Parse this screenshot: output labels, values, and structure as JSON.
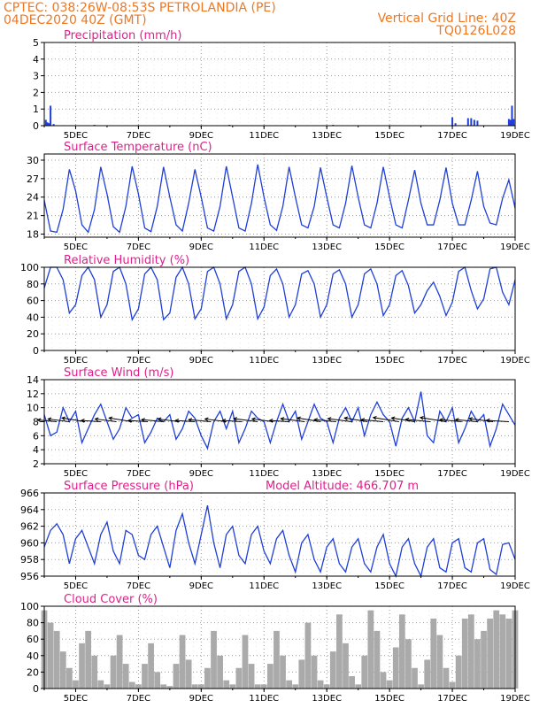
{
  "header": {
    "left_line1": "CPTEC:   038:26W-08:53S   PETROLANDIA (PE)",
    "left_line2": "04DEC2020 40Z (GMT)",
    "right_line1": "Vertical Grid Line: 40Z",
    "right_line2": "TQ0126L028"
  },
  "colors": {
    "header": "#ee7722",
    "panel_title": "#e0208a",
    "line": "#1f3fd8",
    "cloud": "#aaaaaa",
    "arrow": "#000000",
    "grid": "#999999"
  },
  "chart_data": [
    {
      "type": "bar",
      "title": "Precipitation (mm/h)",
      "ylim": [
        0,
        5
      ],
      "yticks": [
        0,
        1,
        2,
        3,
        4,
        5
      ],
      "xticks": [
        "5DEC",
        "7DEC",
        "9DEC",
        "11DEC",
        "13DEC",
        "15DEC",
        "17DEC",
        "19DEC"
      ],
      "xrange_days": [
        4.0,
        19.0
      ],
      "series": [
        {
          "x": [
            4.05,
            4.1,
            4.15,
            4.2,
            4.3,
            5.6,
            9.9,
            13.2,
            17.0,
            17.1,
            17.5,
            17.6,
            17.7,
            17.8,
            18.8,
            18.85,
            18.9,
            18.95
          ],
          "values": [
            0.35,
            0.2,
            0.15,
            1.2,
            0.1,
            0.05,
            0.05,
            0.05,
            0.5,
            0.15,
            0.45,
            0.45,
            0.35,
            0.3,
            0.4,
            0.35,
            1.2,
            0.4
          ]
        }
      ]
    },
    {
      "type": "line",
      "title": "Surface Temperature (nC)",
      "ylim": [
        17.5,
        31
      ],
      "yticks": [
        18,
        21,
        24,
        27,
        30
      ],
      "xticks": [
        "5DEC",
        "7DEC",
        "9DEC",
        "11DEC",
        "13DEC",
        "15DEC",
        "17DEC",
        "19DEC"
      ],
      "xrange_days": [
        4.0,
        19.0
      ],
      "series": [
        {
          "x": [
            4.0,
            4.2,
            4.4,
            4.6,
            4.8,
            5.0,
            5.2,
            5.4,
            5.6,
            5.8,
            6.0,
            6.2,
            6.4,
            6.6,
            6.8,
            7.0,
            7.2,
            7.4,
            7.6,
            7.8,
            8.0,
            8.2,
            8.4,
            8.6,
            8.8,
            9.0,
            9.2,
            9.4,
            9.6,
            9.8,
            10.0,
            10.2,
            10.4,
            10.6,
            10.8,
            11.0,
            11.2,
            11.4,
            11.6,
            11.8,
            12.0,
            12.2,
            12.4,
            12.6,
            12.8,
            13.0,
            13.2,
            13.4,
            13.6,
            13.8,
            14.0,
            14.2,
            14.4,
            14.6,
            14.8,
            15.0,
            15.2,
            15.4,
            15.6,
            15.8,
            16.0,
            16.2,
            16.4,
            16.6,
            16.8,
            17.0,
            17.2,
            17.4,
            17.6,
            17.8,
            18.0,
            18.2,
            18.4,
            18.6,
            18.8,
            19.0
          ],
          "values": [
            23.5,
            18.5,
            18.3,
            22,
            28.5,
            25,
            19.5,
            18.3,
            22,
            28.9,
            24.5,
            19.2,
            18.3,
            22.5,
            29,
            24.5,
            19,
            18.4,
            22.5,
            28.9,
            24,
            19.5,
            18.5,
            23,
            28.5,
            24,
            19,
            18.5,
            22.5,
            29,
            24,
            19,
            18.5,
            23,
            29.3,
            24,
            19.5,
            18.6,
            22.5,
            28.9,
            24,
            19.5,
            19,
            22.5,
            28.8,
            24,
            19.5,
            19,
            23,
            29.1,
            24,
            19.5,
            19,
            23,
            28.9,
            24,
            19.5,
            19,
            23.5,
            28.4,
            23,
            19.5,
            19.5,
            23.5,
            28.8,
            23,
            19.5,
            19.5,
            23.5,
            28.2,
            22.5,
            19.8,
            19.5,
            23.8,
            26.8,
            22.2
          ]
        }
      ]
    },
    {
      "type": "line",
      "title": "Relative Humidity (%)",
      "ylim": [
        0,
        100
      ],
      "yticks": [
        0,
        20,
        40,
        60,
        80,
        100
      ],
      "xticks": [
        "5DEC",
        "7DEC",
        "9DEC",
        "11DEC",
        "13DEC",
        "15DEC",
        "17DEC",
        "19DEC"
      ],
      "xrange_days": [
        4.0,
        19.0
      ],
      "series": [
        {
          "x": [
            4.0,
            4.2,
            4.4,
            4.6,
            4.8,
            5.0,
            5.2,
            5.4,
            5.6,
            5.8,
            6.0,
            6.2,
            6.4,
            6.6,
            6.8,
            7.0,
            7.2,
            7.4,
            7.6,
            7.8,
            8.0,
            8.2,
            8.4,
            8.6,
            8.8,
            9.0,
            9.2,
            9.4,
            9.6,
            9.8,
            10.0,
            10.2,
            10.4,
            10.6,
            10.8,
            11.0,
            11.2,
            11.4,
            11.6,
            11.8,
            12.0,
            12.2,
            12.4,
            12.6,
            12.8,
            13.0,
            13.2,
            13.4,
            13.6,
            13.8,
            14.0,
            14.2,
            14.4,
            14.6,
            14.8,
            15.0,
            15.2,
            15.4,
            15.6,
            15.8,
            16.0,
            16.2,
            16.4,
            16.6,
            16.8,
            17.0,
            17.2,
            17.4,
            17.6,
            17.8,
            18.0,
            18.2,
            18.4,
            18.6,
            18.8,
            19.0
          ],
          "values": [
            75,
            100,
            100,
            85,
            45,
            55,
            90,
            100,
            85,
            40,
            55,
            95,
            100,
            80,
            37,
            50,
            92,
            100,
            85,
            37,
            45,
            88,
            100,
            80,
            38,
            50,
            95,
            100,
            80,
            38,
            55,
            95,
            100,
            80,
            38,
            52,
            90,
            98,
            80,
            40,
            55,
            92,
            96,
            80,
            40,
            55,
            92,
            97,
            80,
            40,
            55,
            92,
            98,
            80,
            42,
            55,
            90,
            96,
            78,
            45,
            55,
            72,
            82,
            65,
            42,
            58,
            95,
            100,
            72,
            50,
            62,
            98,
            100,
            70,
            55,
            85
          ]
        }
      ]
    },
    {
      "type": "line",
      "title": "Surface Wind (m/s)",
      "ylim": [
        2,
        14
      ],
      "yticks": [
        2,
        4,
        6,
        8,
        10,
        12,
        14
      ],
      "xticks": [
        "5DEC",
        "7DEC",
        "9DEC",
        "11DEC",
        "13DEC",
        "15DEC",
        "17DEC",
        "19DEC"
      ],
      "xrange_days": [
        4.0,
        19.0
      ],
      "series": [
        {
          "x": [
            4.0,
            4.2,
            4.4,
            4.6,
            4.8,
            5.0,
            5.2,
            5.4,
            5.6,
            5.8,
            6.0,
            6.2,
            6.4,
            6.6,
            6.8,
            7.0,
            7.2,
            7.4,
            7.6,
            7.8,
            8.0,
            8.2,
            8.4,
            8.6,
            8.8,
            9.0,
            9.2,
            9.4,
            9.6,
            9.8,
            10.0,
            10.2,
            10.4,
            10.6,
            10.8,
            11.0,
            11.2,
            11.4,
            11.6,
            11.8,
            12.0,
            12.2,
            12.4,
            12.6,
            12.8,
            13.0,
            13.2,
            13.4,
            13.6,
            13.8,
            14.0,
            14.2,
            14.4,
            14.6,
            14.8,
            15.0,
            15.2,
            15.4,
            15.6,
            15.8,
            16.0,
            16.2,
            16.4,
            16.6,
            16.8,
            17.0,
            17.2,
            17.4,
            17.6,
            17.8,
            18.0,
            18.2,
            18.4,
            18.6,
            18.8,
            19.0
          ],
          "values": [
            9,
            6,
            6.5,
            10,
            8,
            9.5,
            5,
            7,
            9,
            10.5,
            8,
            5.5,
            7,
            10,
            8.5,
            9,
            5,
            6.5,
            8.5,
            8,
            9,
            5.5,
            7,
            9.5,
            8.5,
            6,
            4.2,
            8,
            9.5,
            7,
            9.5,
            5,
            7,
            9.5,
            8.5,
            8,
            5,
            8,
            10.5,
            8,
            9.5,
            5.5,
            8,
            10.5,
            8.5,
            8,
            5,
            8.5,
            10,
            8,
            10,
            6,
            9,
            10.8,
            9,
            8,
            4.5,
            8.5,
            10,
            8,
            12.3,
            6,
            5,
            9.5,
            8,
            10,
            5,
            7,
            9.5,
            8,
            9,
            4.5,
            7,
            10.5,
            9,
            7.5
          ]
        }
      ]
    },
    {
      "type": "line",
      "title": "Surface Pressure (hPa)",
      "annotation": "Model Altitude: 466.707 m",
      "ylim": [
        956,
        966
      ],
      "yticks": [
        956,
        958,
        960,
        962,
        964,
        966
      ],
      "xticks": [
        "5DEC",
        "7DEC",
        "9DEC",
        "11DEC",
        "13DEC",
        "15DEC",
        "17DEC",
        "19DEC"
      ],
      "xrange_days": [
        4.0,
        19.0
      ],
      "series": [
        {
          "x": [
            4.0,
            4.2,
            4.4,
            4.6,
            4.8,
            5.0,
            5.2,
            5.4,
            5.6,
            5.8,
            6.0,
            6.2,
            6.4,
            6.6,
            6.8,
            7.0,
            7.2,
            7.4,
            7.6,
            7.8,
            8.0,
            8.2,
            8.4,
            8.6,
            8.8,
            9.0,
            9.2,
            9.4,
            9.6,
            9.8,
            10.0,
            10.2,
            10.4,
            10.6,
            10.8,
            11.0,
            11.2,
            11.4,
            11.6,
            11.8,
            12.0,
            12.2,
            12.4,
            12.6,
            12.8,
            13.0,
            13.2,
            13.4,
            13.6,
            13.8,
            14.0,
            14.2,
            14.4,
            14.6,
            14.8,
            15.0,
            15.2,
            15.4,
            15.6,
            15.8,
            16.0,
            16.2,
            16.4,
            16.6,
            16.8,
            17.0,
            17.2,
            17.4,
            17.6,
            17.8,
            18.0,
            18.2,
            18.4,
            18.6,
            18.8,
            19.0
          ],
          "values": [
            959.5,
            961.5,
            962.3,
            961,
            957.5,
            960.5,
            961.5,
            959.5,
            957.5,
            961,
            962.5,
            959,
            957.5,
            961.5,
            961,
            958.5,
            958,
            961,
            962,
            959.5,
            957,
            961.5,
            963.5,
            960,
            957.5,
            961,
            964.5,
            960,
            957,
            961,
            962,
            958.5,
            957.5,
            961,
            962,
            959,
            957.5,
            960.5,
            961.5,
            958.5,
            956.5,
            960,
            961,
            958,
            956.5,
            959.5,
            960.5,
            957.5,
            956.5,
            959.5,
            960.5,
            957.5,
            956.5,
            959.5,
            961,
            957.5,
            956,
            959.5,
            960.5,
            957.5,
            956,
            959.5,
            960.5,
            957,
            956.5,
            960,
            960.5,
            957,
            956.5,
            960,
            960.5,
            956.8,
            956.2,
            959.8,
            960,
            958
          ]
        }
      ]
    },
    {
      "type": "area",
      "title": "Cloud Cover (%)",
      "ylim": [
        0,
        100
      ],
      "yticks": [
        0,
        20,
        40,
        60,
        80,
        100
      ],
      "xticks": [
        "5DEC",
        "7DEC",
        "9DEC",
        "11DEC",
        "13DEC",
        "15DEC",
        "17DEC",
        "19DEC"
      ],
      "xrange_days": [
        4.0,
        19.0
      ],
      "series": [
        {
          "x": [
            4.0,
            4.2,
            4.4,
            4.6,
            4.8,
            5.0,
            5.2,
            5.4,
            5.6,
            5.8,
            6.0,
            6.2,
            6.4,
            6.6,
            6.8,
            7.0,
            7.2,
            7.4,
            7.6,
            7.8,
            8.0,
            8.2,
            8.4,
            8.6,
            8.8,
            9.0,
            9.2,
            9.4,
            9.6,
            9.8,
            10.0,
            10.2,
            10.4,
            10.6,
            10.8,
            11.0,
            11.2,
            11.4,
            11.6,
            11.8,
            12.0,
            12.2,
            12.4,
            12.6,
            12.8,
            13.0,
            13.2,
            13.4,
            13.6,
            13.8,
            14.0,
            14.2,
            14.4,
            14.6,
            14.8,
            15.0,
            15.2,
            15.4,
            15.6,
            15.8,
            16.0,
            16.2,
            16.4,
            16.6,
            16.8,
            17.0,
            17.2,
            17.4,
            17.6,
            17.8,
            18.0,
            18.2,
            18.4,
            18.6,
            18.8,
            19.0
          ],
          "values": [
            95,
            80,
            70,
            45,
            25,
            10,
            55,
            70,
            40,
            10,
            5,
            40,
            65,
            30,
            8,
            5,
            30,
            55,
            20,
            5,
            3,
            30,
            65,
            35,
            5,
            5,
            25,
            70,
            40,
            10,
            5,
            25,
            65,
            30,
            5,
            5,
            30,
            70,
            40,
            10,
            5,
            35,
            80,
            40,
            10,
            5,
            45,
            90,
            55,
            15,
            5,
            40,
            95,
            70,
            20,
            10,
            50,
            90,
            60,
            25,
            5,
            35,
            85,
            65,
            25,
            8,
            40,
            85,
            90,
            60,
            70,
            85,
            95,
            90,
            85,
            95
          ]
        }
      ]
    }
  ],
  "wind_vectors": {
    "x": [
      4.4,
      4.8,
      5.3,
      5.8,
      6.3,
      6.8,
      7.3,
      7.8,
      8.3,
      8.8,
      9.3,
      9.8,
      10.3,
      10.8,
      11.3,
      11.8,
      12.3,
      12.8,
      13.3,
      13.8,
      14.3,
      14.8,
      15.3,
      15.8,
      16.3,
      16.8,
      17.3,
      17.8,
      18.3,
      18.8
    ],
    "speed": [
      7,
      8,
      9,
      7,
      8,
      9,
      7,
      8,
      8,
      7,
      8,
      8,
      7,
      9,
      8,
      7,
      9,
      9,
      8,
      9,
      9,
      8,
      10,
      9,
      9,
      10,
      8,
      8,
      9,
      8
    ],
    "angle_deg": [
      -15,
      -20,
      -25,
      -10,
      -20,
      -25,
      -10,
      -15,
      -20,
      -10,
      -15,
      -20,
      -10,
      -20,
      -20,
      -10,
      -20,
      -25,
      -15,
      -20,
      -25,
      -15,
      -25,
      -25,
      -15,
      -25,
      -15,
      -15,
      -20,
      -10
    ]
  }
}
